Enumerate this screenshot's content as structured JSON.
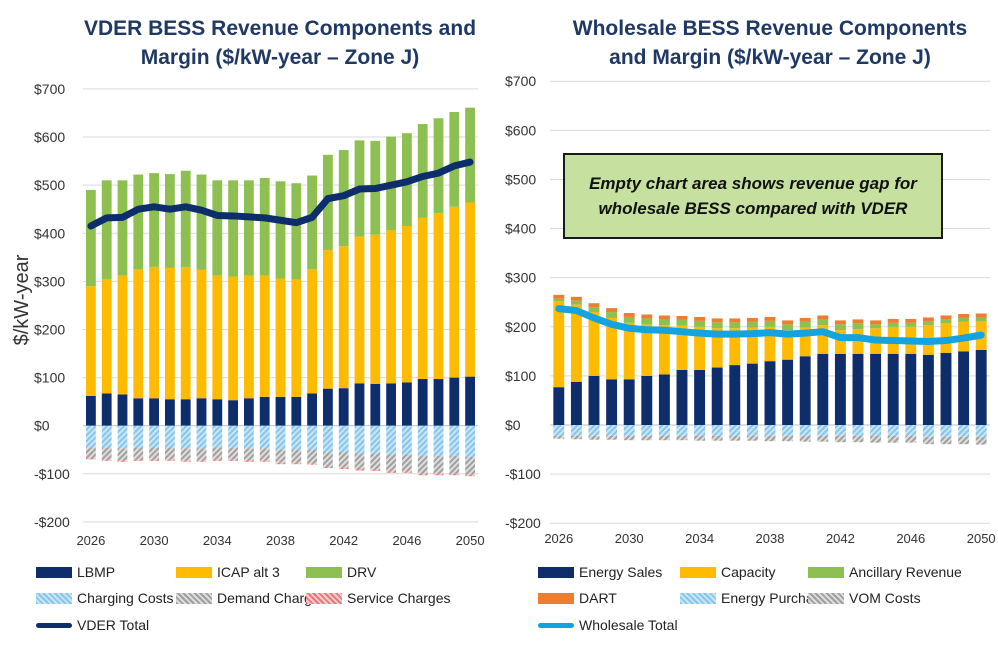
{
  "chart_data": [
    {
      "type": "bar",
      "stacked": true,
      "title": [
        "VDER BESS Revenue Components and",
        "Margin ($/kW-year – Zone J)"
      ],
      "ylabel": "$/kW-year",
      "ylim": [
        -200,
        700
      ],
      "yticks": [
        -200,
        -100,
        0,
        100,
        200,
        300,
        400,
        500,
        600,
        700
      ],
      "ytick_labels": [
        "-$200",
        "-$100",
        "$0",
        "$100",
        "$200",
        "$300",
        "$400",
        "$500",
        "$600",
        "$700"
      ],
      "x": [
        2026,
        2027,
        2028,
        2029,
        2030,
        2031,
        2032,
        2033,
        2034,
        2035,
        2036,
        2037,
        2038,
        2039,
        2040,
        2041,
        2042,
        2043,
        2044,
        2045,
        2046,
        2047,
        2048,
        2049,
        2050
      ],
      "xtick_labels": [
        "2026",
        "2030",
        "2034",
        "2038",
        "2042",
        "2046",
        "2050"
      ],
      "grid": true,
      "series": [
        {
          "name": "LBMP",
          "color": "#0d2d6b",
          "kind": "bar",
          "values": [
            62,
            67,
            65,
            57,
            57,
            55,
            55,
            57,
            55,
            53,
            57,
            60,
            60,
            60,
            67,
            77,
            78,
            88,
            87,
            88,
            90,
            97,
            97,
            100,
            102
          ]
        },
        {
          "name": "ICAP alt 3",
          "color": "#ffbb00",
          "kind": "bar",
          "values": [
            228,
            238,
            247,
            268,
            273,
            273,
            275,
            267,
            257,
            257,
            255,
            252,
            246,
            244,
            258,
            288,
            295,
            305,
            310,
            318,
            325,
            335,
            345,
            355,
            362
          ]
        },
        {
          "name": "DRV",
          "color": "#8dc050",
          "kind": "bar",
          "values": [
            200,
            205,
            198,
            197,
            195,
            195,
            200,
            198,
            198,
            200,
            198,
            203,
            202,
            200,
            195,
            198,
            200,
            200,
            195,
            195,
            193,
            195,
            197,
            197,
            197
          ]
        },
        {
          "name": "Charging Costs",
          "color": "#86c5ec",
          "kind": "bar",
          "values": [
            -45,
            -45,
            -47,
            -45,
            -45,
            -45,
            -47,
            -47,
            -45,
            -45,
            -47,
            -47,
            -50,
            -50,
            -50,
            -55,
            -55,
            -58,
            -58,
            -60,
            -60,
            -63,
            -63,
            -63,
            -65
          ]
        },
        {
          "name": "Demand Charges",
          "color": "#a0a0a0",
          "kind": "bar",
          "values": [
            -22,
            -25,
            -25,
            -25,
            -25,
            -25,
            -25,
            -25,
            -25,
            -25,
            -25,
            -25,
            -27,
            -27,
            -28,
            -30,
            -32,
            -32,
            -33,
            -35,
            -35,
            -37,
            -37,
            -37,
            -37
          ]
        },
        {
          "name": "Service Charges",
          "color": "#e57b7b",
          "kind": "bar",
          "values": [
            -3,
            -3,
            -3,
            -3,
            -3,
            -3,
            -3,
            -3,
            -3,
            -3,
            -3,
            -3,
            -3,
            -3,
            -3,
            -3,
            -3,
            -3,
            -3,
            -3,
            -3,
            -3,
            -3,
            -3,
            -3
          ]
        },
        {
          "name": "VDER Total",
          "color": "#0d2d6b",
          "kind": "line",
          "values": [
            415,
            432,
            433,
            450,
            455,
            450,
            455,
            448,
            437,
            436,
            434,
            432,
            427,
            422,
            433,
            472,
            478,
            492,
            493,
            500,
            507,
            518,
            525,
            540,
            548
          ]
        }
      ]
    },
    {
      "type": "bar",
      "stacked": true,
      "title": [
        "Wholesale BESS Revenue Components",
        "and Margin ($/kW-year – Zone J)"
      ],
      "ylim": [
        -200,
        700
      ],
      "yticks": [
        -200,
        -100,
        0,
        100,
        200,
        300,
        400,
        500,
        600,
        700
      ],
      "ytick_labels": [
        "-$200",
        "-$100",
        "$0",
        "$100",
        "$200",
        "$300",
        "$400",
        "$500",
        "$600",
        "$700"
      ],
      "x": [
        2026,
        2027,
        2028,
        2029,
        2030,
        2031,
        2032,
        2033,
        2034,
        2035,
        2036,
        2037,
        2038,
        2039,
        2040,
        2041,
        2042,
        2043,
        2044,
        2045,
        2046,
        2047,
        2048,
        2049,
        2050
      ],
      "xtick_labels": [
        "2026",
        "2030",
        "2034",
        "2038",
        "2042",
        "2046",
        "2050"
      ],
      "grid": true,
      "annotation": [
        "Empty chart area shows revenue gap for",
        "wholesale BESS compared with VDER"
      ],
      "series": [
        {
          "name": "Energy Sales",
          "color": "#0d2d6b",
          "kind": "bar",
          "values": [
            77,
            88,
            100,
            93,
            93,
            100,
            103,
            112,
            112,
            117,
            122,
            125,
            130,
            133,
            140,
            145,
            145,
            145,
            145,
            145,
            145,
            143,
            147,
            150,
            153
          ]
        },
        {
          "name": "Capacity",
          "color": "#ffbb00",
          "kind": "bar",
          "values": [
            175,
            157,
            130,
            125,
            115,
            105,
            100,
            90,
            88,
            80,
            75,
            73,
            70,
            60,
            58,
            58,
            48,
            50,
            52,
            55,
            55,
            60,
            60,
            60,
            58
          ]
        },
        {
          "name": "Ancillary Revenue",
          "color": "#8dc050",
          "kind": "bar",
          "values": [
            5,
            8,
            10,
            12,
            12,
            12,
            12,
            12,
            12,
            12,
            12,
            12,
            12,
            12,
            12,
            12,
            12,
            12,
            8,
            8,
            8,
            8,
            8,
            8,
            8
          ]
        },
        {
          "name": "DART",
          "color": "#ed7d31",
          "kind": "bar",
          "values": [
            8,
            8,
            8,
            8,
            8,
            8,
            8,
            8,
            8,
            8,
            8,
            8,
            8,
            8,
            8,
            8,
            8,
            8,
            8,
            8,
            8,
            8,
            8,
            8,
            8
          ]
        },
        {
          "name": "Energy Purchases",
          "color": "#86c5ec",
          "kind": "bar",
          "values": [
            -22,
            -22,
            -22,
            -22,
            -22,
            -22,
            -22,
            -22,
            -22,
            -22,
            -22,
            -22,
            -22,
            -22,
            -22,
            -22,
            -22,
            -22,
            -22,
            -22,
            -22,
            -24,
            -24,
            -24,
            -24
          ]
        },
        {
          "name": "VOM Costs",
          "color": "#a0a0a0",
          "kind": "bar",
          "values": [
            -6,
            -7,
            -8,
            -8,
            -9,
            -9,
            -9,
            -9,
            -10,
            -10,
            -10,
            -10,
            -11,
            -11,
            -12,
            -12,
            -13,
            -13,
            -14,
            -14,
            -14,
            -15,
            -15,
            -15,
            -16
          ]
        },
        {
          "name": "Wholesale Total",
          "color": "#12a3e0",
          "kind": "line",
          "values": [
            237,
            233,
            218,
            205,
            197,
            194,
            193,
            190,
            187,
            185,
            185,
            186,
            188,
            185,
            187,
            190,
            178,
            178,
            173,
            172,
            171,
            170,
            172,
            177,
            183
          ]
        }
      ]
    }
  ],
  "legend_left": {
    "items": [
      "LBMP",
      "ICAP alt 3",
      "DRV",
      "Charging Costs",
      "Demand Charges",
      "Service Charges",
      "VDER Total"
    ]
  },
  "legend_right": {
    "items": [
      "Energy Sales",
      "Capacity",
      "Ancillary Revenue",
      "DART",
      "Energy Purchases",
      "VOM Costs",
      "Wholesale Total"
    ]
  }
}
